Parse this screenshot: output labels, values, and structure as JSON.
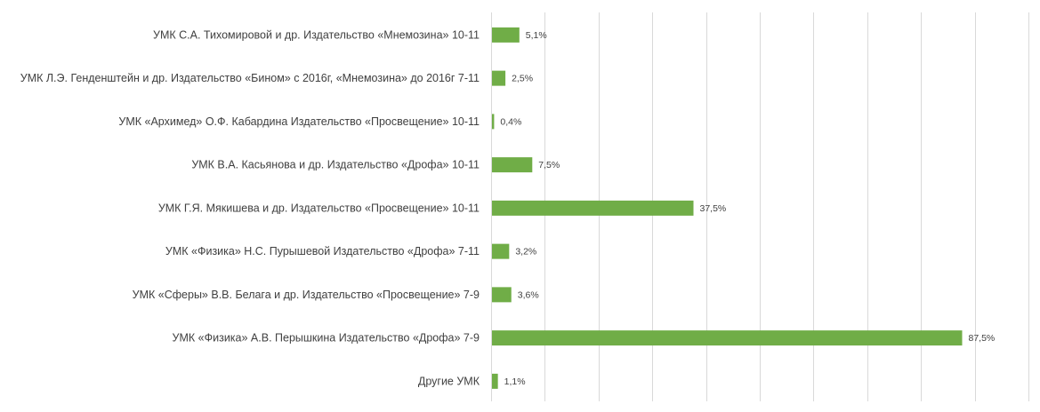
{
  "chart_data": {
    "type": "bar",
    "orientation": "horizontal",
    "categories": [
      "УМК С.А. Тихомировой и др. Издательство «Мнемозина» 10-11",
      "УМК Л.Э. Генденштейн и др. Издательство «Бином» с 2016г, «Мнемозина» до 2016г 7-11",
      "УМК «Архимед» О.Ф. Кабардина Издательство «Просвещение» 10-11",
      "УМК В.А. Касьянова и др. Издательство «Дрофа» 10-11",
      "УМК Г.Я. Мякишева и др. Издательство «Просвещение» 10-11",
      "УМК «Физика» Н.С. Пурышевой Издательство «Дрофа» 7-11",
      "УМК «Сферы» В.В. Белага и др. Издательство «Просвещение» 7-9",
      "УМК «Физика» А.В. Перышкина Издательство «Дрофа» 7-9",
      "Другие УМК"
    ],
    "values": [
      5.1,
      2.5,
      0.4,
      7.5,
      37.5,
      3.2,
      3.6,
      87.5,
      1.1
    ],
    "value_labels": [
      "5,1%",
      "2,5%",
      "0,4%",
      "7,5%",
      "37,5%",
      "3,2%",
      "3,6%",
      "87,5%",
      "1,1%"
    ],
    "xlim": [
      0,
      100
    ],
    "x_gridlines": [
      0,
      10,
      20,
      30,
      40,
      50,
      60,
      70,
      80,
      90,
      100
    ],
    "grid": true,
    "bar_color": "#70ad47",
    "title": "",
    "xlabel": "",
    "ylabel": ""
  }
}
